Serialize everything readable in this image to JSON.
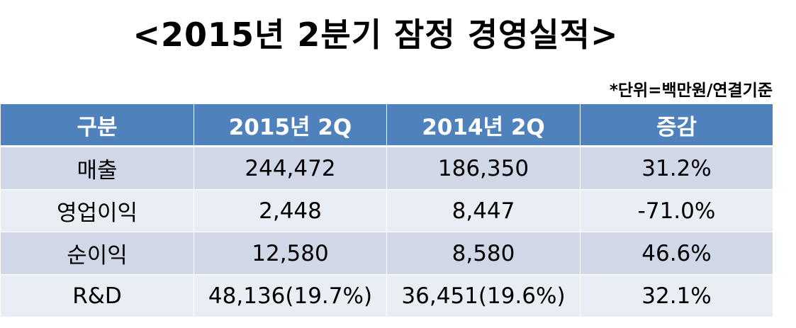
{
  "title": "<2015년 2분기 잠정 경영실적>",
  "unit_note": "*단위=백만원/연결기준",
  "table": {
    "headers": [
      "구분",
      "2015년 2Q",
      "2014년 2Q",
      "증감"
    ],
    "rows": [
      [
        "매출",
        "244,472",
        "186,350",
        "31.2%"
      ],
      [
        "영업이익",
        "2,448",
        "8,447",
        "-71.0%"
      ],
      [
        "순이익",
        "12,580",
        "8,580",
        "46.6%"
      ],
      [
        "R&D",
        "48,136(19.7%)",
        "36,451(19.6%)",
        "32.1%"
      ]
    ]
  },
  "colors": {
    "header_bg": "#4f81bd",
    "header_text": "#ffffff",
    "row_odd_bg": "#d0d8e8",
    "row_even_bg": "#e9edf4"
  }
}
